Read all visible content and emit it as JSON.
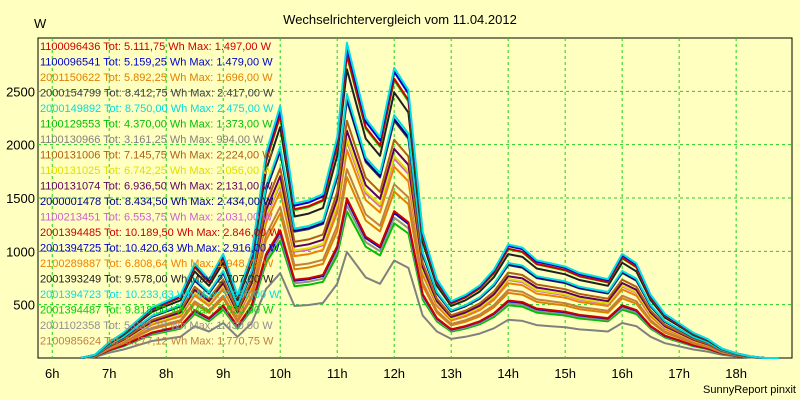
{
  "chart_data": {
    "type": "line",
    "title": "Wechselrichtervergleich vom 11.04.2012",
    "ylabel": "W",
    "xlabel": "",
    "footer": "SunnyReport pinxit",
    "ylim": [
      0,
      3000
    ],
    "xlim": [
      5.75,
      18.98
    ],
    "y_ticks": [
      500,
      1000,
      1500,
      2000,
      2500
    ],
    "x_ticks": [
      {
        "v": 6,
        "label": "6h"
      },
      {
        "v": 7,
        "label": "7h"
      },
      {
        "v": 8,
        "label": "8h"
      },
      {
        "v": 9,
        "label": "9h"
      },
      {
        "v": 10,
        "label": "10h"
      },
      {
        "v": 11,
        "label": "11h"
      },
      {
        "v": 12,
        "label": "12h"
      },
      {
        "v": 13,
        "label": "13h"
      },
      {
        "v": 14,
        "label": "14h"
      },
      {
        "v": 15,
        "label": "15h"
      },
      {
        "v": 16,
        "label": "16h"
      },
      {
        "v": 17,
        "label": "17h"
      },
      {
        "v": 18,
        "label": "18h"
      }
    ],
    "grid": true,
    "legend_position": "top-left",
    "x": [
      6.5,
      6.75,
      7.0,
      7.25,
      7.5,
      7.75,
      8.0,
      8.25,
      8.5,
      8.75,
      9.0,
      9.25,
      9.5,
      9.75,
      10.0,
      10.25,
      10.5,
      10.75,
      11.0,
      11.17,
      11.5,
      11.75,
      12.0,
      12.25,
      12.5,
      12.75,
      13.0,
      13.25,
      13.5,
      13.75,
      14.0,
      14.25,
      14.5,
      14.75,
      15.0,
      15.25,
      15.5,
      15.75,
      16.0,
      16.25,
      16.5,
      16.75,
      17.0,
      17.25,
      17.5,
      17.75,
      18.0,
      18.25,
      18.5,
      18.75
    ],
    "reference_profile": [
      0,
      0.01,
      0.05,
      0.08,
      0.12,
      0.16,
      0.18,
      0.2,
      0.3,
      0.25,
      0.33,
      0.2,
      0.33,
      0.65,
      0.8,
      0.49,
      0.5,
      0.52,
      0.7,
      1.0,
      0.76,
      0.7,
      0.92,
      0.85,
      0.4,
      0.25,
      0.18,
      0.2,
      0.23,
      0.28,
      0.36,
      0.35,
      0.31,
      0.3,
      0.29,
      0.27,
      0.26,
      0.25,
      0.33,
      0.3,
      0.2,
      0.14,
      0.11,
      0.08,
      0.06,
      0.03,
      0.015,
      0.005,
      0,
      0
    ],
    "series": [
      {
        "name": "1100096436 Tot: 5.111,75 Wh Max: 1.497,00 W",
        "color": "#cc0000",
        "peak": 1497
      },
      {
        "name": "1100096541 Tot: 5.159,25 Wh Max: 1.479,00 W",
        "color": "#0000cc",
        "peak": 1479
      },
      {
        "name": "2001150622 Tot: 5.892,25 Wh Max: 1.696,00 W",
        "color": "#e08000",
        "peak": 1696
      },
      {
        "name": "2000154799 Tot: 8.412,75 Wh Max: 2.417,00 W",
        "color": "#404040",
        "peak": 2417
      },
      {
        "name": "2000149892 Tot: 8.750,00 Wh Max: 2.475,00 W",
        "color": "#00dddd",
        "peak": 2475
      },
      {
        "name": "1100129553 Tot: 4.370,00 Wh Max: 1.373,00 W",
        "color": "#00c000",
        "peak": 1373
      },
      {
        "name": "1100130966 Tot: 3.161,25 Wh Max: 994,00 W",
        "color": "#808080",
        "peak": 994
      },
      {
        "name": "1100131006 Tot: 7.145,75 Wh Max: 2.224,00 W",
        "color": "#b06010",
        "peak": 2224
      },
      {
        "name": "1100131025 Tot: 6.742,25 Wh Max: 2.056,00 W",
        "color": "#e0e000",
        "peak": 2056
      },
      {
        "name": "1100131074 Tot: 6.936,50 Wh Max: 2.131,00 W",
        "color": "#600060",
        "peak": 2131
      },
      {
        "name": "2000001478 Tot: 8.434,50 Wh Max: 2.434,00 W",
        "color": "#000088",
        "peak": 2434
      },
      {
        "name": "1100213451 Tot: 6.553,75 Wh Max: 2.031,00 W",
        "color": "#d060d0",
        "peak": 2031
      },
      {
        "name": "2001394485 Tot: 10.189,50 Wh Max: 2.846,00 W",
        "color": "#cc0000",
        "peak": 2846
      },
      {
        "name": "2001394725 Tot: 10.420,63 Wh Max: 2.916,00 W",
        "color": "#0000cc",
        "peak": 2916
      },
      {
        "name": "2100289887 Tot: 6.808,64 Wh Max: 1.948,75 W",
        "color": "#f08000",
        "peak": 1949
      },
      {
        "name": "2001393249 Tot: 9.578,00 Wh Max: 2.707,00 W",
        "color": "#202020",
        "peak": 2707
      },
      {
        "name": "2001394723 Tot: 10.233,63 Wh Max: 2.956,00 W",
        "color": "#00e0e0",
        "peak": 2956
      },
      {
        "name": "2001394487 Tot: 9.818,50 Wh Max: 2.830,00 W",
        "color": "#00d000",
        "peak": 2830
      },
      {
        "name": "2001102358 Tot: 5.032,75 Wh Max: 1.430,00 W",
        "color": "#909090",
        "peak": 1430
      },
      {
        "name": "2100985624 Tot: 6.277,12 Wh Max: 1.770,75 W",
        "color": "#c08040",
        "peak": 1771
      }
    ]
  }
}
